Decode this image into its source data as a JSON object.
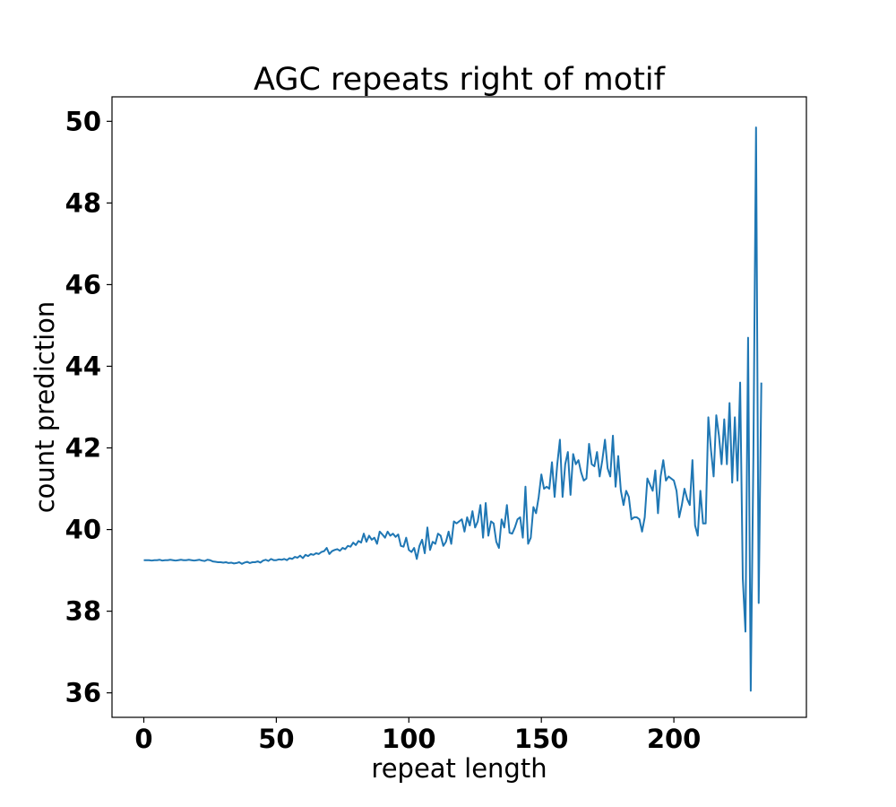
{
  "chart_data": {
    "type": "line",
    "title": "AGC repeats right of motif",
    "xlabel": "repeat length",
    "ylabel": "count prediction",
    "xlim": [
      -12,
      250
    ],
    "ylim": [
      35.4,
      50.6
    ],
    "x_ticks": [
      0,
      50,
      100,
      150,
      200
    ],
    "y_ticks": [
      36,
      38,
      40,
      42,
      44,
      46,
      48,
      50
    ],
    "grid": false,
    "legend": "none",
    "series_color": "#1f77b4",
    "series": [
      {
        "x_start": 0,
        "x_step": 1,
        "values": [
          39.25,
          39.25,
          39.25,
          39.24,
          39.25,
          39.25,
          39.26,
          39.24,
          39.25,
          39.25,
          39.26,
          39.25,
          39.24,
          39.25,
          39.26,
          39.25,
          39.25,
          39.26,
          39.25,
          39.24,
          39.25,
          39.26,
          39.24,
          39.23,
          39.26,
          39.25,
          39.22,
          39.21,
          39.2,
          39.2,
          39.19,
          39.2,
          39.18,
          39.19,
          39.17,
          39.18,
          39.2,
          39.16,
          39.19,
          39.21,
          39.18,
          39.2,
          39.2,
          39.22,
          39.19,
          39.24,
          39.26,
          39.23,
          39.28,
          39.25,
          39.25,
          39.27,
          39.26,
          39.28,
          39.25,
          39.3,
          39.28,
          39.33,
          39.31,
          39.36,
          39.3,
          39.38,
          39.35,
          39.4,
          39.38,
          39.42,
          39.4,
          39.45,
          39.47,
          39.55,
          39.4,
          39.47,
          39.5,
          39.52,
          39.48,
          39.55,
          39.52,
          39.6,
          39.58,
          39.68,
          39.62,
          39.72,
          39.68,
          39.9,
          39.7,
          39.85,
          39.75,
          39.8,
          39.65,
          39.95,
          39.88,
          39.8,
          39.95,
          39.85,
          39.9,
          39.82,
          39.88,
          39.6,
          39.58,
          39.8,
          39.5,
          39.45,
          39.55,
          39.28,
          39.6,
          39.75,
          39.42,
          40.05,
          39.5,
          39.7,
          39.65,
          39.9,
          39.85,
          39.6,
          39.7,
          39.95,
          39.65,
          40.2,
          40.15,
          40.2,
          40.25,
          39.95,
          40.3,
          40.1,
          40.45,
          40.05,
          40.2,
          40.6,
          39.8,
          40.65,
          39.85,
          40.2,
          40.15,
          39.7,
          39.55,
          40.25,
          40.05,
          40.6,
          39.92,
          39.9,
          40.05,
          40.25,
          40.3,
          39.8,
          41.05,
          39.65,
          39.8,
          40.55,
          40.4,
          40.8,
          41.35,
          41.0,
          41.05,
          41.0,
          41.65,
          40.8,
          41.6,
          42.2,
          40.8,
          41.6,
          41.9,
          40.85,
          41.85,
          41.6,
          41.7,
          41.4,
          41.2,
          41.25,
          42.1,
          41.6,
          41.55,
          41.9,
          41.3,
          41.7,
          42.2,
          41.5,
          41.3,
          42.3,
          41.05,
          41.8,
          40.95,
          40.6,
          40.95,
          40.8,
          40.25,
          40.3,
          40.3,
          40.25,
          39.95,
          40.3,
          41.25,
          41.1,
          40.95,
          41.45,
          40.4,
          41.3,
          41.7,
          41.2,
          41.3,
          41.25,
          41.2,
          40.95,
          40.3,
          40.6,
          41.0,
          40.75,
          40.6,
          41.7,
          40.1,
          39.85,
          40.95,
          40.15,
          40.15,
          42.75,
          41.95,
          41.3,
          42.8,
          42.3,
          41.6,
          42.7,
          41.6,
          43.1,
          41.15,
          42.75,
          41.2,
          43.6,
          38.8,
          37.5,
          44.7,
          36.05,
          41.8,
          49.85,
          38.2,
          43.6
        ]
      }
    ]
  }
}
